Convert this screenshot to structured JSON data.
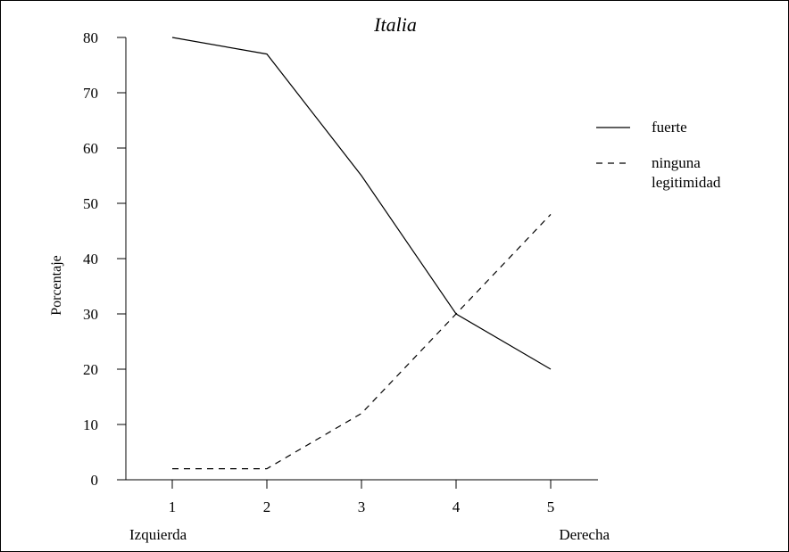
{
  "chart_data": {
    "type": "line",
    "title": "Italia",
    "xlabel": "",
    "ylabel": "Porcentaje",
    "x": [
      1,
      2,
      3,
      4,
      5
    ],
    "x_tick_labels": [
      "1",
      "2",
      "3",
      "4",
      "5"
    ],
    "x_end_labels": {
      "left": "Izquierda",
      "right": "Derecha"
    },
    "y_ticks": [
      0,
      10,
      20,
      30,
      40,
      50,
      60,
      70,
      80
    ],
    "ylim": [
      0,
      80
    ],
    "xlim": [
      0.5,
      5.5
    ],
    "grid": false,
    "legend_position": "right",
    "series": [
      {
        "name": "fuerte",
        "style": "solid",
        "values": [
          80,
          77,
          55,
          30,
          20
        ]
      },
      {
        "name": "ninguna legitimidad",
        "name_lines": [
          "ninguna",
          "legitimidad"
        ],
        "style": "dashed",
        "values": [
          2,
          2,
          12,
          30,
          48
        ]
      }
    ]
  }
}
